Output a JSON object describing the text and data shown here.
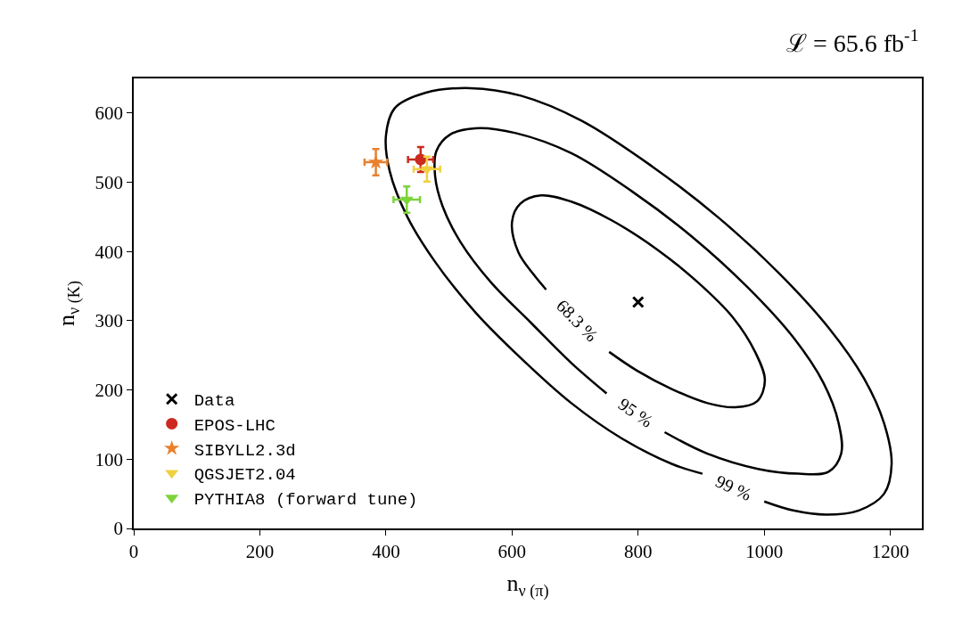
{
  "chart_data": {
    "type": "scatter",
    "title": "ℒ = 65.6 fb$^{-1}$",
    "xlabel": "n$_{ν (π)}$",
    "ylabel": "n$_{ν (K)}$",
    "xlim": [
      0,
      1250
    ],
    "ylim": [
      0,
      650
    ],
    "xticks": [
      0,
      200,
      400,
      600,
      800,
      1000,
      1200
    ],
    "yticks": [
      0,
      100,
      200,
      300,
      400,
      500,
      600
    ],
    "legend": "bottom left",
    "series": [
      {
        "type": "line",
        "color": "#000000",
        "marker": "none",
        "line_style": "solid",
        "x": [
          754,
          798,
          854,
          910,
          954,
          989,
          1001,
          986,
          950,
          894,
          830,
          758,
          694,
          646,
          613,
          600,
          610,
          634,
          654
        ],
        "values": [
          255,
          228,
          201,
          181,
          175,
          184,
          214,
          254,
          305,
          356,
          403,
          445,
          472,
          481,
          469,
          443,
          399,
          367,
          345
        ]
      },
      {
        "type": "line",
        "color": "#000000",
        "marker": "none",
        "line_style": "solid",
        "x": [
          842,
          910,
          990,
          1054,
          1102,
          1122,
          1118,
          1094,
          1046,
          974,
          886,
          790,
          694,
          606,
          542,
          502,
          480,
          478,
          490,
          518,
          566,
          630,
          694,
          750
        ],
        "values": [
          139,
          108,
          86,
          79,
          82,
          108,
          152,
          210,
          276,
          348,
          421,
          487,
          542,
          571,
          578,
          569,
          545,
          509,
          465,
          414,
          356,
          297,
          239,
          195
        ]
      },
      {
        "type": "line",
        "color": "#000000",
        "marker": "none",
        "line_style": "solid",
        "x": [
          1000,
          1046,
          1098,
          1150,
          1190,
          1202,
          1190,
          1158,
          1102,
          1022,
          926,
          822,
          710,
          614,
          534,
          462,
          414,
          400,
          406,
          434,
          478,
          542,
          614,
          694,
          774,
          854,
          902
        ],
        "values": [
          39,
          26,
          20,
          26,
          50,
          93,
          152,
          217,
          290,
          370,
          450,
          523,
          589,
          625,
          636,
          629,
          607,
          567,
          516,
          450,
          385,
          312,
          246,
          181,
          130,
          93,
          79
        ]
      },
      {
        "name": "Data",
        "color": "#000000",
        "marker": "cross",
        "x": [
          800
        ],
        "values": [
          327
        ]
      },
      {
        "name": "EPOS-LHC",
        "color": "#cc2a1f",
        "marker": "circle",
        "x": [
          455
        ],
        "values": [
          533
        ],
        "errors": [
          18
        ],
        "xerrors": [
          20
        ]
      },
      {
        "name": "SIBYLL2.3d",
        "color": "#e8812f",
        "marker": "star",
        "x": [
          384
        ],
        "values": [
          529
        ],
        "errors": [
          19
        ],
        "xerrors": [
          18
        ]
      },
      {
        "name": "QGSJET2.04",
        "color": "#f0d040",
        "marker": "triangle",
        "x": [
          465
        ],
        "values": [
          519
        ],
        "errors": [
          18
        ],
        "xerrors": [
          21
        ]
      },
      {
        "name": "PYTHIA8 (forward tune)",
        "color": "#7dd33a",
        "marker": "triangle",
        "x": [
          433
        ],
        "values": [
          475
        ],
        "errors": [
          19
        ],
        "xerrors": [
          21
        ]
      }
    ],
    "annotations": [
      "68.3 %",
      "95 %",
      "99 %"
    ]
  }
}
